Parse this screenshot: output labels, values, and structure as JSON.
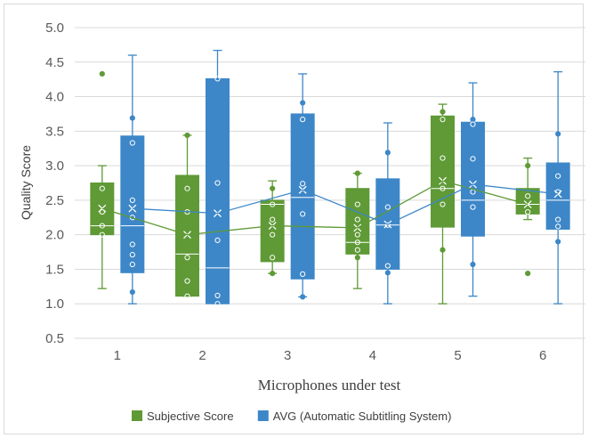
{
  "chart_data": {
    "type": "box",
    "title": "",
    "xlabel": "Microphones under test",
    "ylabel": "Quality Score",
    "ylim": [
      0.5,
      5.0
    ],
    "yticks": [
      "0.5",
      "1.0",
      "1.5",
      "2.0",
      "2.5",
      "3.0",
      "3.5",
      "4.0",
      "4.5",
      "5.0"
    ],
    "categories": [
      "1",
      "2",
      "3",
      "4",
      "5",
      "6"
    ],
    "grid": true,
    "legend_position": "bottom",
    "series": [
      {
        "name": "Subjective Score",
        "color": "#5f9a36",
        "boxes": [
          {
            "min": 1.22,
            "q1": 2.0,
            "median": 2.13,
            "q3": 2.75,
            "max": 3.0,
            "mean": 2.38,
            "points": [
              4.33,
              2.67,
              2.33,
              2.13,
              2.0
            ]
          },
          {
            "min": 1.11,
            "q1": 1.11,
            "median": 1.72,
            "q3": 2.86,
            "max": 3.44,
            "mean": 2.0,
            "points": [
              2.67,
              2.33,
              1.67,
              1.33,
              1.11,
              3.44
            ]
          },
          {
            "min": 1.44,
            "q1": 1.61,
            "median": 2.44,
            "q3": 2.5,
            "max": 2.78,
            "mean": 2.13,
            "points": [
              2.67,
              2.44,
              2.22,
              2.0,
              1.67,
              1.44
            ]
          },
          {
            "min": 1.22,
            "q1": 1.72,
            "median": 1.89,
            "q3": 2.67,
            "max": 2.89,
            "mean": 2.1,
            "points": [
              2.89,
              2.44,
              2.22,
              2.0,
              1.89,
              1.78,
              1.67
            ]
          },
          {
            "min": 1.0,
            "q1": 2.11,
            "median": 2.67,
            "q3": 3.72,
            "max": 3.89,
            "mean": 2.78,
            "points": [
              3.78,
              3.67,
              3.11,
              2.67,
              2.44,
              1.78
            ]
          },
          {
            "min": 2.22,
            "q1": 2.3,
            "median": 2.44,
            "q3": 2.67,
            "max": 3.11,
            "mean": 2.44,
            "points": [
              3.0,
              2.56,
              2.33,
              1.44
            ]
          }
        ]
      },
      {
        "name": "AVG (Automatic Subtitling System)",
        "color": "#3d87c8",
        "boxes": [
          {
            "min": 1.0,
            "q1": 1.45,
            "median": 2.13,
            "q3": 3.43,
            "max": 4.6,
            "mean": 2.38,
            "points": [
              3.69,
              3.33,
              2.5,
              2.25,
              1.86,
              1.71,
              1.57,
              1.17
            ]
          },
          {
            "min": 1.0,
            "q1": 1.0,
            "median": 1.52,
            "q3": 4.26,
            "max": 4.67,
            "mean": 2.31,
            "points": [
              4.26,
              2.75,
              1.92,
              1.12,
              1.0
            ]
          },
          {
            "min": 1.1,
            "q1": 1.36,
            "median": 2.54,
            "q3": 3.75,
            "max": 4.33,
            "mean": 2.65,
            "points": [
              3.91,
              3.67,
              2.74,
              2.3,
              1.43,
              1.1
            ]
          },
          {
            "min": 1.0,
            "q1": 1.5,
            "median": 2.14,
            "q3": 2.81,
            "max": 3.62,
            "mean": 2.15,
            "points": [
              3.19,
              2.4,
              2.14,
              1.55,
              1.45
            ]
          },
          {
            "min": 1.11,
            "q1": 1.98,
            "median": 2.5,
            "q3": 3.63,
            "max": 4.2,
            "mean": 2.73,
            "points": [
              3.67,
              3.6,
              3.1,
              2.62,
              2.4,
              1.57
            ]
          },
          {
            "min": 1.0,
            "q1": 2.08,
            "median": 2.5,
            "q3": 3.04,
            "max": 4.36,
            "mean": 2.59,
            "points": [
              3.46,
              2.85,
              2.62,
              2.22,
              2.12,
              1.9
            ]
          }
        ]
      }
    ]
  }
}
